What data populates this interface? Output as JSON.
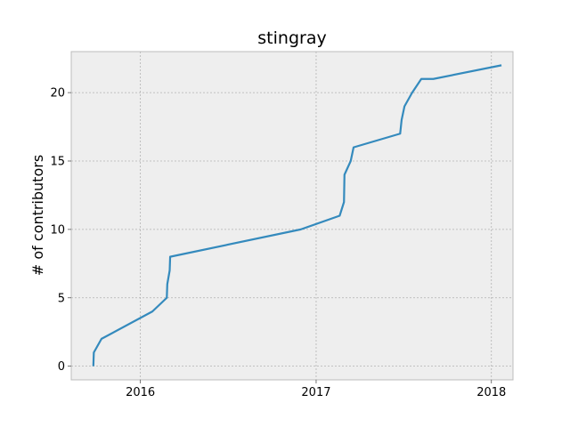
{
  "chart_data": {
    "type": "line",
    "title": "stingray",
    "xlabel": "",
    "ylabel": "# of contributors",
    "xlim": [
      "2015-08-10",
      "2018-02-15"
    ],
    "ylim": [
      -1,
      23
    ],
    "xticks": [
      {
        "value": "2016-01-01",
        "label": "2016"
      },
      {
        "value": "2017-01-01",
        "label": "2017"
      },
      {
        "value": "2018-01-01",
        "label": "2018"
      }
    ],
    "yticks": [
      {
        "value": 0,
        "label": "0"
      },
      {
        "value": 5,
        "label": "5"
      },
      {
        "value": 10,
        "label": "10"
      },
      {
        "value": 15,
        "label": "15"
      },
      {
        "value": 20,
        "label": "20"
      }
    ],
    "grid": true,
    "line_color": "#348ABD",
    "plot_background": "#EEEEEE",
    "series": [
      {
        "x": [
          "2015-09-25",
          "2015-09-26",
          "2015-10-12",
          "2016-01-26",
          "2016-02-25",
          "2016-02-26",
          "2016-03-02",
          "2016-03-03",
          "2016-11-30",
          "2017-02-19",
          "2017-02-28",
          "2017-03-01",
          "2017-03-14",
          "2017-03-20",
          "2017-06-25",
          "2017-06-28",
          "2017-07-04",
          "2017-07-20",
          "2017-08-08",
          "2017-09-02",
          "2018-01-22"
        ],
        "y": [
          0,
          1,
          2,
          4,
          5,
          6,
          7,
          8,
          10,
          11,
          12,
          14,
          15,
          16,
          17,
          18,
          19,
          20,
          21,
          21,
          22
        ]
      }
    ]
  }
}
